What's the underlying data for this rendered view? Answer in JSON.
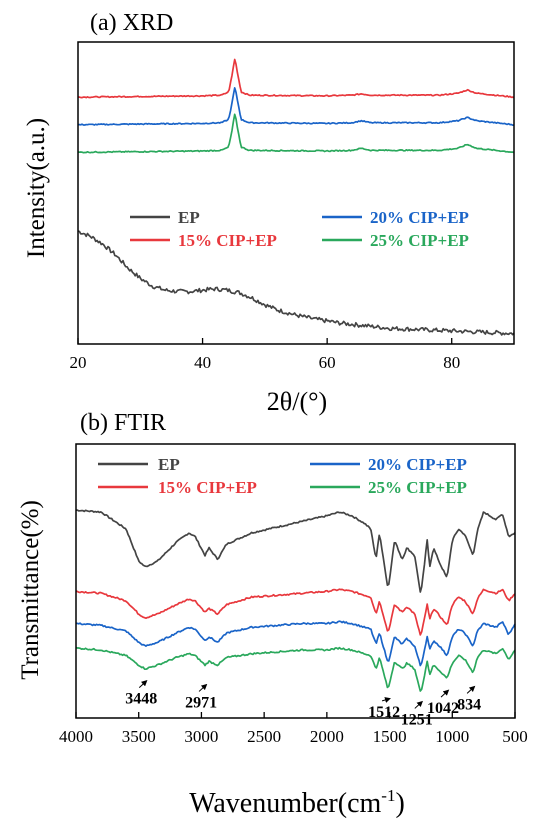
{
  "chart_data": [
    {
      "type": "line",
      "panel_title": "(a) XRD",
      "xlabel": "2θ/(°)",
      "ylabel": "Intensity(a.u.)",
      "xlim": [
        20,
        90
      ],
      "x_ticks": [
        "20",
        "40",
        "60",
        "80"
      ],
      "x_tick_values": [
        20,
        40,
        60,
        80
      ],
      "y_ticks_shown": false,
      "legend_placement": "middle",
      "series": [
        {
          "name": "EP",
          "color": "#444444",
          "x": [
            20,
            22,
            24,
            26,
            28,
            30,
            32,
            34,
            36,
            38,
            40,
            42,
            44,
            46,
            48,
            50,
            52,
            55,
            58,
            62,
            66,
            70,
            75,
            80,
            85,
            90
          ],
          "y": [
            86,
            82,
            76,
            68,
            58,
            50,
            44,
            41,
            40,
            40,
            41,
            42,
            41,
            39,
            35,
            30,
            26,
            22,
            19,
            16,
            14,
            12,
            11,
            10,
            9,
            8
          ]
        },
        {
          "name": "15% CIP+EP",
          "color": "#e8383d",
          "x": [
            20,
            30,
            40,
            43,
            44.2,
            44.7,
            45.2,
            45.7,
            46.2,
            47.5,
            60,
            64,
            65.5,
            67,
            78,
            81,
            82.5,
            84,
            90
          ],
          "y": [
            188,
            188.5,
            189,
            189.5,
            192,
            204,
            218,
            204,
            192,
            189.5,
            189,
            189.5,
            190.5,
            189.5,
            189.5,
            191,
            193.5,
            191,
            188
          ]
        },
        {
          "name": "20% CIP+EP",
          "color": "#1a64c8",
          "x": [
            20,
            30,
            40,
            43,
            44.2,
            44.7,
            45.2,
            45.7,
            46.2,
            47.5,
            60,
            64,
            65.5,
            67,
            78,
            81,
            82.5,
            84,
            90
          ],
          "y": [
            167,
            167.5,
            168,
            168.5,
            171,
            183,
            196,
            183,
            171,
            168.5,
            168,
            168.5,
            170,
            168.5,
            168.5,
            170,
            172.5,
            170,
            167
          ]
        },
        {
          "name": "25% CIP+EP",
          "color": "#2aa85c",
          "x": [
            20,
            30,
            40,
            43,
            44.2,
            44.7,
            45.2,
            45.7,
            46.2,
            47.5,
            60,
            64,
            65.5,
            67,
            78,
            81,
            82.5,
            84,
            90
          ],
          "y": [
            146,
            146.5,
            147,
            147.5,
            150,
            162,
            176,
            162,
            150,
            147.5,
            147,
            147.5,
            149,
            147.5,
            147.5,
            149,
            152,
            149,
            146
          ]
        }
      ]
    },
    {
      "type": "line",
      "panel_title": "(b) FTIR",
      "xlabel": "Wavenumber(cm",
      "xlabel_sup": "-1",
      "xlabel_end": ")",
      "ylabel": "Transmittance(%)",
      "xlim": [
        4000,
        500
      ],
      "x_ticks": [
        "4000",
        "3500",
        "3000",
        "2500",
        "2000",
        "1500",
        "1000",
        "500"
      ],
      "x_tick_values": [
        4000,
        3500,
        3000,
        2500,
        2000,
        1500,
        1000,
        500
      ],
      "y_ticks_shown": false,
      "legend_placement": "top",
      "annotations": [
        {
          "label": "3448",
          "x": 3448,
          "y_label": 5,
          "y_arrow": 9
        },
        {
          "label": "2971",
          "x": 2971,
          "y_label": 3,
          "y_arrow": 7
        },
        {
          "label": "1512",
          "x": 1512,
          "y_label": -2,
          "y_arrow": 0
        },
        {
          "label": "1251",
          "x": 1251,
          "y_label": -6,
          "y_arrow": -2
        },
        {
          "label": "1042",
          "x": 1042,
          "y_label": 0,
          "y_arrow": 4
        },
        {
          "label": "834",
          "x": 834,
          "y_label": 2,
          "y_arrow": 6
        }
      ],
      "series": [
        {
          "name": "EP",
          "color": "#444444",
          "x": [
            4000,
            3800,
            3600,
            3500,
            3448,
            3350,
            3200,
            3100,
            3050,
            2971,
            2940,
            2871,
            2800,
            2600,
            2400,
            2200,
            2000,
            1900,
            1800,
            1700,
            1650,
            1608,
            1580,
            1512,
            1460,
            1400,
            1362,
            1300,
            1251,
            1200,
            1180,
            1150,
            1100,
            1042,
            1000,
            950,
            900,
            834,
            800,
            750,
            700,
            650,
            600,
            550,
            500
          ],
          "y": [
            100,
            99,
            90,
            73,
            70,
            73,
            83,
            88,
            86,
            76,
            80,
            74,
            82,
            88,
            91,
            94,
            97,
            99,
            97,
            93,
            90,
            74,
            88,
            58,
            84,
            74,
            80,
            76,
            55,
            84,
            70,
            80,
            72,
            64,
            84,
            90,
            87,
            76,
            89,
            99,
            97,
            95,
            98,
            86,
            88
          ]
        },
        {
          "name": "15% CIP+EP",
          "color": "#e8383d",
          "x": [
            4000,
            3800,
            3600,
            3500,
            3448,
            3350,
            3200,
            3100,
            3050,
            2971,
            2940,
            2871,
            2800,
            2600,
            2400,
            2200,
            2000,
            1900,
            1800,
            1700,
            1650,
            1608,
            1580,
            1512,
            1460,
            1400,
            1362,
            1300,
            1251,
            1200,
            1180,
            1150,
            1100,
            1042,
            1000,
            950,
            900,
            834,
            800,
            750,
            700,
            650,
            600,
            550,
            500
          ],
          "y": [
            57,
            56,
            52,
            45,
            43,
            45,
            50,
            53,
            52,
            46,
            48,
            45,
            50,
            54,
            55,
            56,
            57,
            58,
            57,
            55,
            54,
            45,
            52,
            35,
            50,
            46,
            49,
            45,
            33,
            50,
            42,
            48,
            44,
            39,
            50,
            54,
            52,
            45,
            53,
            58,
            57,
            56,
            58,
            52,
            56
          ]
        },
        {
          "name": "20% CIP+EP",
          "color": "#1a64c8",
          "x": [
            4000,
            3800,
            3600,
            3500,
            3448,
            3350,
            3200,
            3100,
            3050,
            2971,
            2940,
            2871,
            2800,
            2600,
            2400,
            2200,
            2000,
            1900,
            1800,
            1700,
            1650,
            1608,
            1580,
            1512,
            1460,
            1400,
            1362,
            1300,
            1251,
            1200,
            1180,
            1150,
            1100,
            1042,
            1000,
            950,
            900,
            834,
            800,
            750,
            700,
            650,
            600,
            550,
            500
          ],
          "y": [
            40,
            39,
            36,
            30,
            28,
            30,
            35,
            38,
            37,
            31,
            33,
            30,
            35,
            38,
            39,
            40,
            40,
            41,
            40,
            38,
            37,
            29,
            35,
            19,
            33,
            29,
            32,
            28,
            17,
            33,
            26,
            31,
            28,
            23,
            33,
            37,
            35,
            28,
            36,
            40,
            39,
            38,
            41,
            34,
            40
          ]
        },
        {
          "name": "25% CIP+EP",
          "color": "#2aa85c",
          "x": [
            4000,
            3800,
            3600,
            3500,
            3448,
            3350,
            3200,
            3100,
            3050,
            2971,
            2940,
            2871,
            2800,
            2600,
            2400,
            2200,
            2000,
            1900,
            1800,
            1700,
            1650,
            1608,
            1580,
            1512,
            1460,
            1400,
            1362,
            1300,
            1251,
            1200,
            1180,
            1150,
            1100,
            1042,
            1000,
            950,
            900,
            834,
            800,
            750,
            700,
            650,
            600,
            550,
            500
          ],
          "y": [
            27,
            26,
            23,
            18,
            16,
            18,
            22,
            24,
            23,
            18,
            20,
            18,
            22,
            24,
            25,
            26,
            26,
            27,
            26,
            24,
            23,
            16,
            22,
            5,
            20,
            16,
            19,
            16,
            3,
            20,
            13,
            18,
            15,
            11,
            19,
            23,
            21,
            14,
            22,
            26,
            25,
            24,
            27,
            21,
            26
          ]
        }
      ]
    }
  ]
}
